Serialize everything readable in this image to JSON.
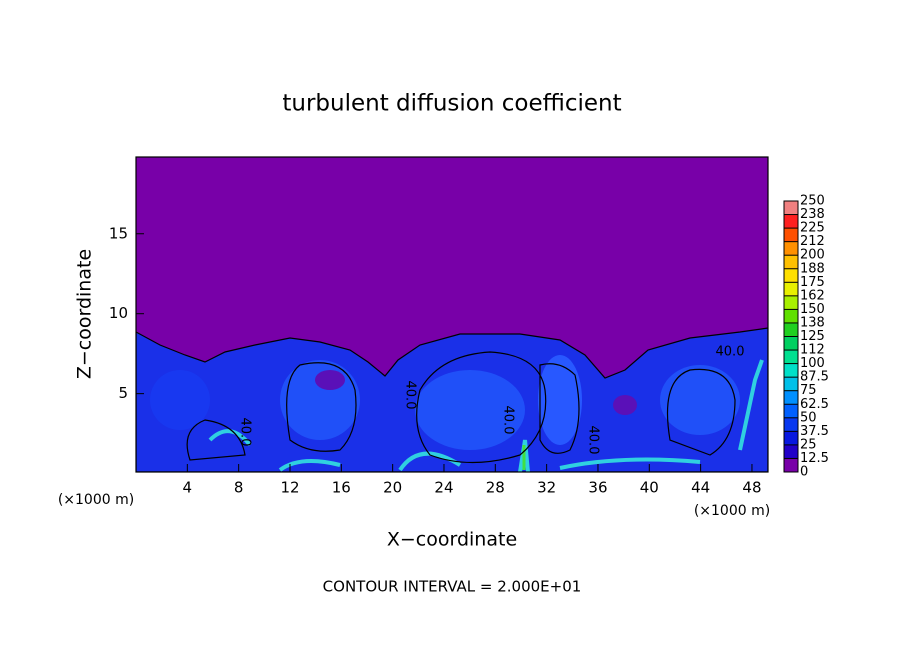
{
  "chart_data": {
    "type": "contour",
    "title": "turbulent diffusion coefficient",
    "xlabel": "X−coordinate",
    "ylabel": "Z−coordinate",
    "x_unit": "(×1000 m)",
    "y_unit": "(×1000 m)",
    "note": "CONTOUR INTERVAL = 2.000E+01",
    "xlim": [
      0,
      49.25
    ],
    "ylim": [
      0.1,
      19.8
    ],
    "xticks": [
      4,
      8,
      12,
      16,
      20,
      24,
      28,
      32,
      36,
      40,
      44,
      48
    ],
    "yticks": [
      5,
      10,
      15
    ],
    "contour_labels": [
      "40.0",
      "40.0",
      "40.0",
      "40.0",
      "40.0"
    ],
    "colorbar": {
      "levels": [
        0,
        {
          "value": 12.5,
          "label": "12.5"
        },
        25,
        {
          "value": 37.5,
          "label": "37.5"
        },
        50,
        {
          "value": 62.5,
          "label": "62.5"
        },
        75,
        {
          "value": 87.5,
          "label": "87.5"
        },
        100,
        {
          "value": 112.5,
          "label": "112"
        },
        125,
        {
          "value": 137.5,
          "label": "138"
        },
        150,
        {
          "value": 162.5,
          "label": "162"
        },
        175,
        {
          "value": 187.5,
          "label": "188"
        },
        200,
        {
          "value": 212.5,
          "label": "212"
        },
        225,
        {
          "value": 237.5,
          "label": "238"
        },
        250
      ],
      "colors": [
        "#7800a8",
        "#2200c8",
        "#0818e0",
        "#0838f0",
        "#0060ff",
        "#0090ff",
        "#00c0e8",
        "#00e0c8",
        "#00e090",
        "#00d060",
        "#20d020",
        "#60e000",
        "#a8f000",
        "#e8f000",
        "#ffe000",
        "#ffc000",
        "#ff9000",
        "#ff5000",
        "#ff2020",
        "#f08080"
      ]
    }
  }
}
